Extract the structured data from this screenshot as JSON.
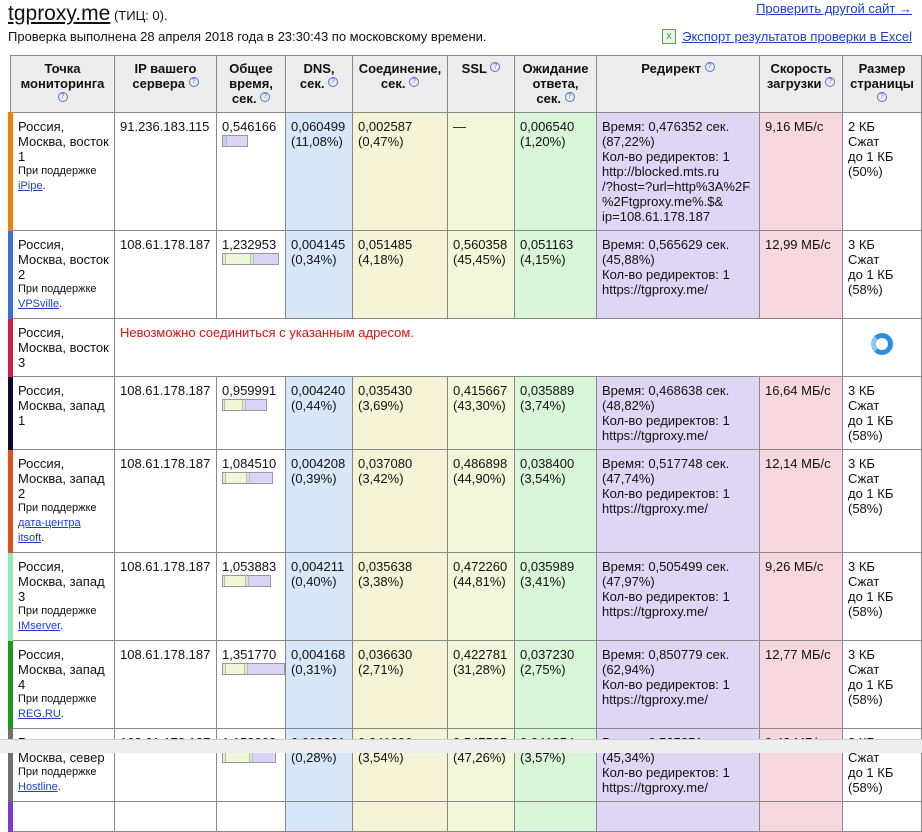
{
  "header": {
    "site": "tgproxy.me",
    "tic": "(ТИЦ: 0).",
    "checked": "Проверка выполнена 28 апреля 2018 года в 23:30:43 по московскому времени.",
    "check_other": "Проверить другой сайт →",
    "export": "Экспорт результатов проверки в Excel"
  },
  "columns": [
    "Точка мониторинга",
    "IP вашего сервера",
    "Общее время, сек.",
    "DNS, сек.",
    "Соединение, сек.",
    "SSL",
    "Ожидание ответа, сек.",
    "Редирект",
    "Скорость загрузки",
    "Размер страницы"
  ],
  "rows": [
    {
      "loc": "Россия, Москва, восток 1",
      "sponsor_prefix": "При поддержке",
      "sponsor": "iPipe",
      "color": "#f07f10",
      "ip": "91.236.183.115",
      "total": "0,546166",
      "dns": "0,060499",
      "dns_pct": "(11,08%)",
      "con": "0,002587",
      "con_pct": "(0,47%)",
      "ssl": "—",
      "ssl_pct": "",
      "wait": "0,006540",
      "wait_pct": "(1,20%)",
      "redirect": [
        "Время: 0,476352 сек.",
        "(87,22%)",
        "Кол-во редиректов: 1",
        "http://blocked.mts.ru",
        "/?host=?url=http%3A%2F",
        "%2Ftgproxy.me%.$&",
        "ip=108.61.178.187"
      ],
      "speed": "9,16 МБ/с",
      "size": [
        "2 КБ",
        "Сжат",
        "до 1 КБ",
        "(50%)"
      ]
    },
    {
      "loc": "Россия, Москва, восток 2",
      "sponsor_prefix": "При поддержке",
      "sponsor": "VPSville",
      "color": "#3a6fd0",
      "ip": "108.61.178.187",
      "total": "1,232953",
      "dns": "0,004145",
      "dns_pct": "(0,34%)",
      "con": "0,051485",
      "con_pct": "(4,18%)",
      "ssl": "0,560358",
      "ssl_pct": "(45,45%)",
      "wait": "0,051163",
      "wait_pct": "(4,15%)",
      "redirect": [
        "Время: 0,565629 сек.",
        "(45,88%)",
        "Кол-во редиректов: 1",
        "https://tgproxy.me/"
      ],
      "speed": "12,99 МБ/с",
      "size": [
        "3 КБ",
        "Сжат",
        "до 1 КБ",
        "(58%)"
      ]
    },
    {
      "loc": "Россия, Москва, восток 3",
      "color": "#d0204a",
      "error": "Невозможно соединиться с указанным адресом."
    },
    {
      "loc": "Россия, Москва, запад 1",
      "color": "#0a0a30",
      "ip": "108.61.178.187",
      "total": "0,959991",
      "dns": "0,004240",
      "dns_pct": "(0,44%)",
      "con": "0,035430",
      "con_pct": "(3,69%)",
      "ssl": "0,415667",
      "ssl_pct": "(43,30%)",
      "wait": "0,035889",
      "wait_pct": "(3,74%)",
      "redirect": [
        "Время: 0,468638 сек.",
        "(48,82%)",
        "Кол-во редиректов: 1",
        "https://tgproxy.me/"
      ],
      "speed": "16,64 МБ/с",
      "size": [
        "3 КБ",
        "Сжат",
        "до 1 КБ",
        "(58%)"
      ]
    },
    {
      "loc": "Россия, Москва, запад 2",
      "sponsor_prefix": "При поддержке",
      "sponsor": "дата-центра itsoft",
      "color": "#e0501a",
      "ip": "108.61.178.187",
      "total": "1,084510",
      "dns": "0,004208",
      "dns_pct": "(0,39%)",
      "con": "0,037080",
      "con_pct": "(3,42%)",
      "ssl": "0,486898",
      "ssl_pct": "(44,90%)",
      "wait": "0,038400",
      "wait_pct": "(3,54%)",
      "redirect": [
        "Время: 0,517748 сек.",
        "(47,74%)",
        "Кол-во редиректов: 1",
        "https://tgproxy.me/"
      ],
      "speed": "12,14 МБ/с",
      "size": [
        "3 КБ",
        "Сжат",
        "до 1 КБ",
        "(58%)"
      ]
    },
    {
      "loc": "Россия, Москва, запад 3",
      "sponsor_prefix": "При поддержке",
      "sponsor": "IMserver",
      "color": "#90e8b8",
      "ip": "108.61.178.187",
      "total": "1,053883",
      "dns": "0,004211",
      "dns_pct": "(0,40%)",
      "con": "0,035638",
      "con_pct": "(3,38%)",
      "ssl": "0,472260",
      "ssl_pct": "(44,81%)",
      "wait": "0,035989",
      "wait_pct": "(3,41%)",
      "redirect": [
        "Время: 0,505499 сек.",
        "(47,97%)",
        "Кол-во редиректов: 1",
        "https://tgproxy.me/"
      ],
      "speed": "9,26 МБ/с",
      "size": [
        "3 КБ",
        "Сжат",
        "до 1 КБ",
        "(58%)"
      ]
    },
    {
      "loc": "Россия, Москва, запад 4",
      "sponsor_prefix": "При поддержке",
      "sponsor": "REG.RU",
      "color": "#1a9a1a",
      "ip": "108.61.178.187",
      "total": "1,351770",
      "dns": "0,004168",
      "dns_pct": "(0,31%)",
      "con": "0,036630",
      "con_pct": "(2,71%)",
      "ssl": "0,422781",
      "ssl_pct": "(31,28%)",
      "wait": "0,037230",
      "wait_pct": "(2,75%)",
      "redirect": [
        "Время: 0,850779 сек.",
        "(62,94%)",
        "Кол-во редиректов: 1",
        "https://tgproxy.me/"
      ],
      "speed": "12,77 МБ/с",
      "size": [
        "3 КБ",
        "Сжат",
        "до 1 КБ",
        "(58%)"
      ]
    },
    {
      "loc": "Россия, Москва, север",
      "sponsor_prefix": "При поддержке",
      "sponsor": "Hostline",
      "color": "#707070",
      "ip": "108.61.178.187",
      "total": "1,158803",
      "dns": "0,003221",
      "dns_pct": "(0,28%)",
      "con": "0,041006",
      "con_pct": "(3,54%)",
      "ssl": "0,547595",
      "ssl_pct": "(47,26%)",
      "wait": "0,041354",
      "wait_pct": "(3,57%)",
      "redirect": [
        "Время: 0,525351 сек.",
        "(45,34%)",
        "Кол-во редиректов: 1",
        "https://tgproxy.me/"
      ],
      "speed": "9,43 МБ/с",
      "size": [
        "3 КБ",
        "Сжат",
        "до 1 КБ",
        "(58%)"
      ]
    }
  ]
}
